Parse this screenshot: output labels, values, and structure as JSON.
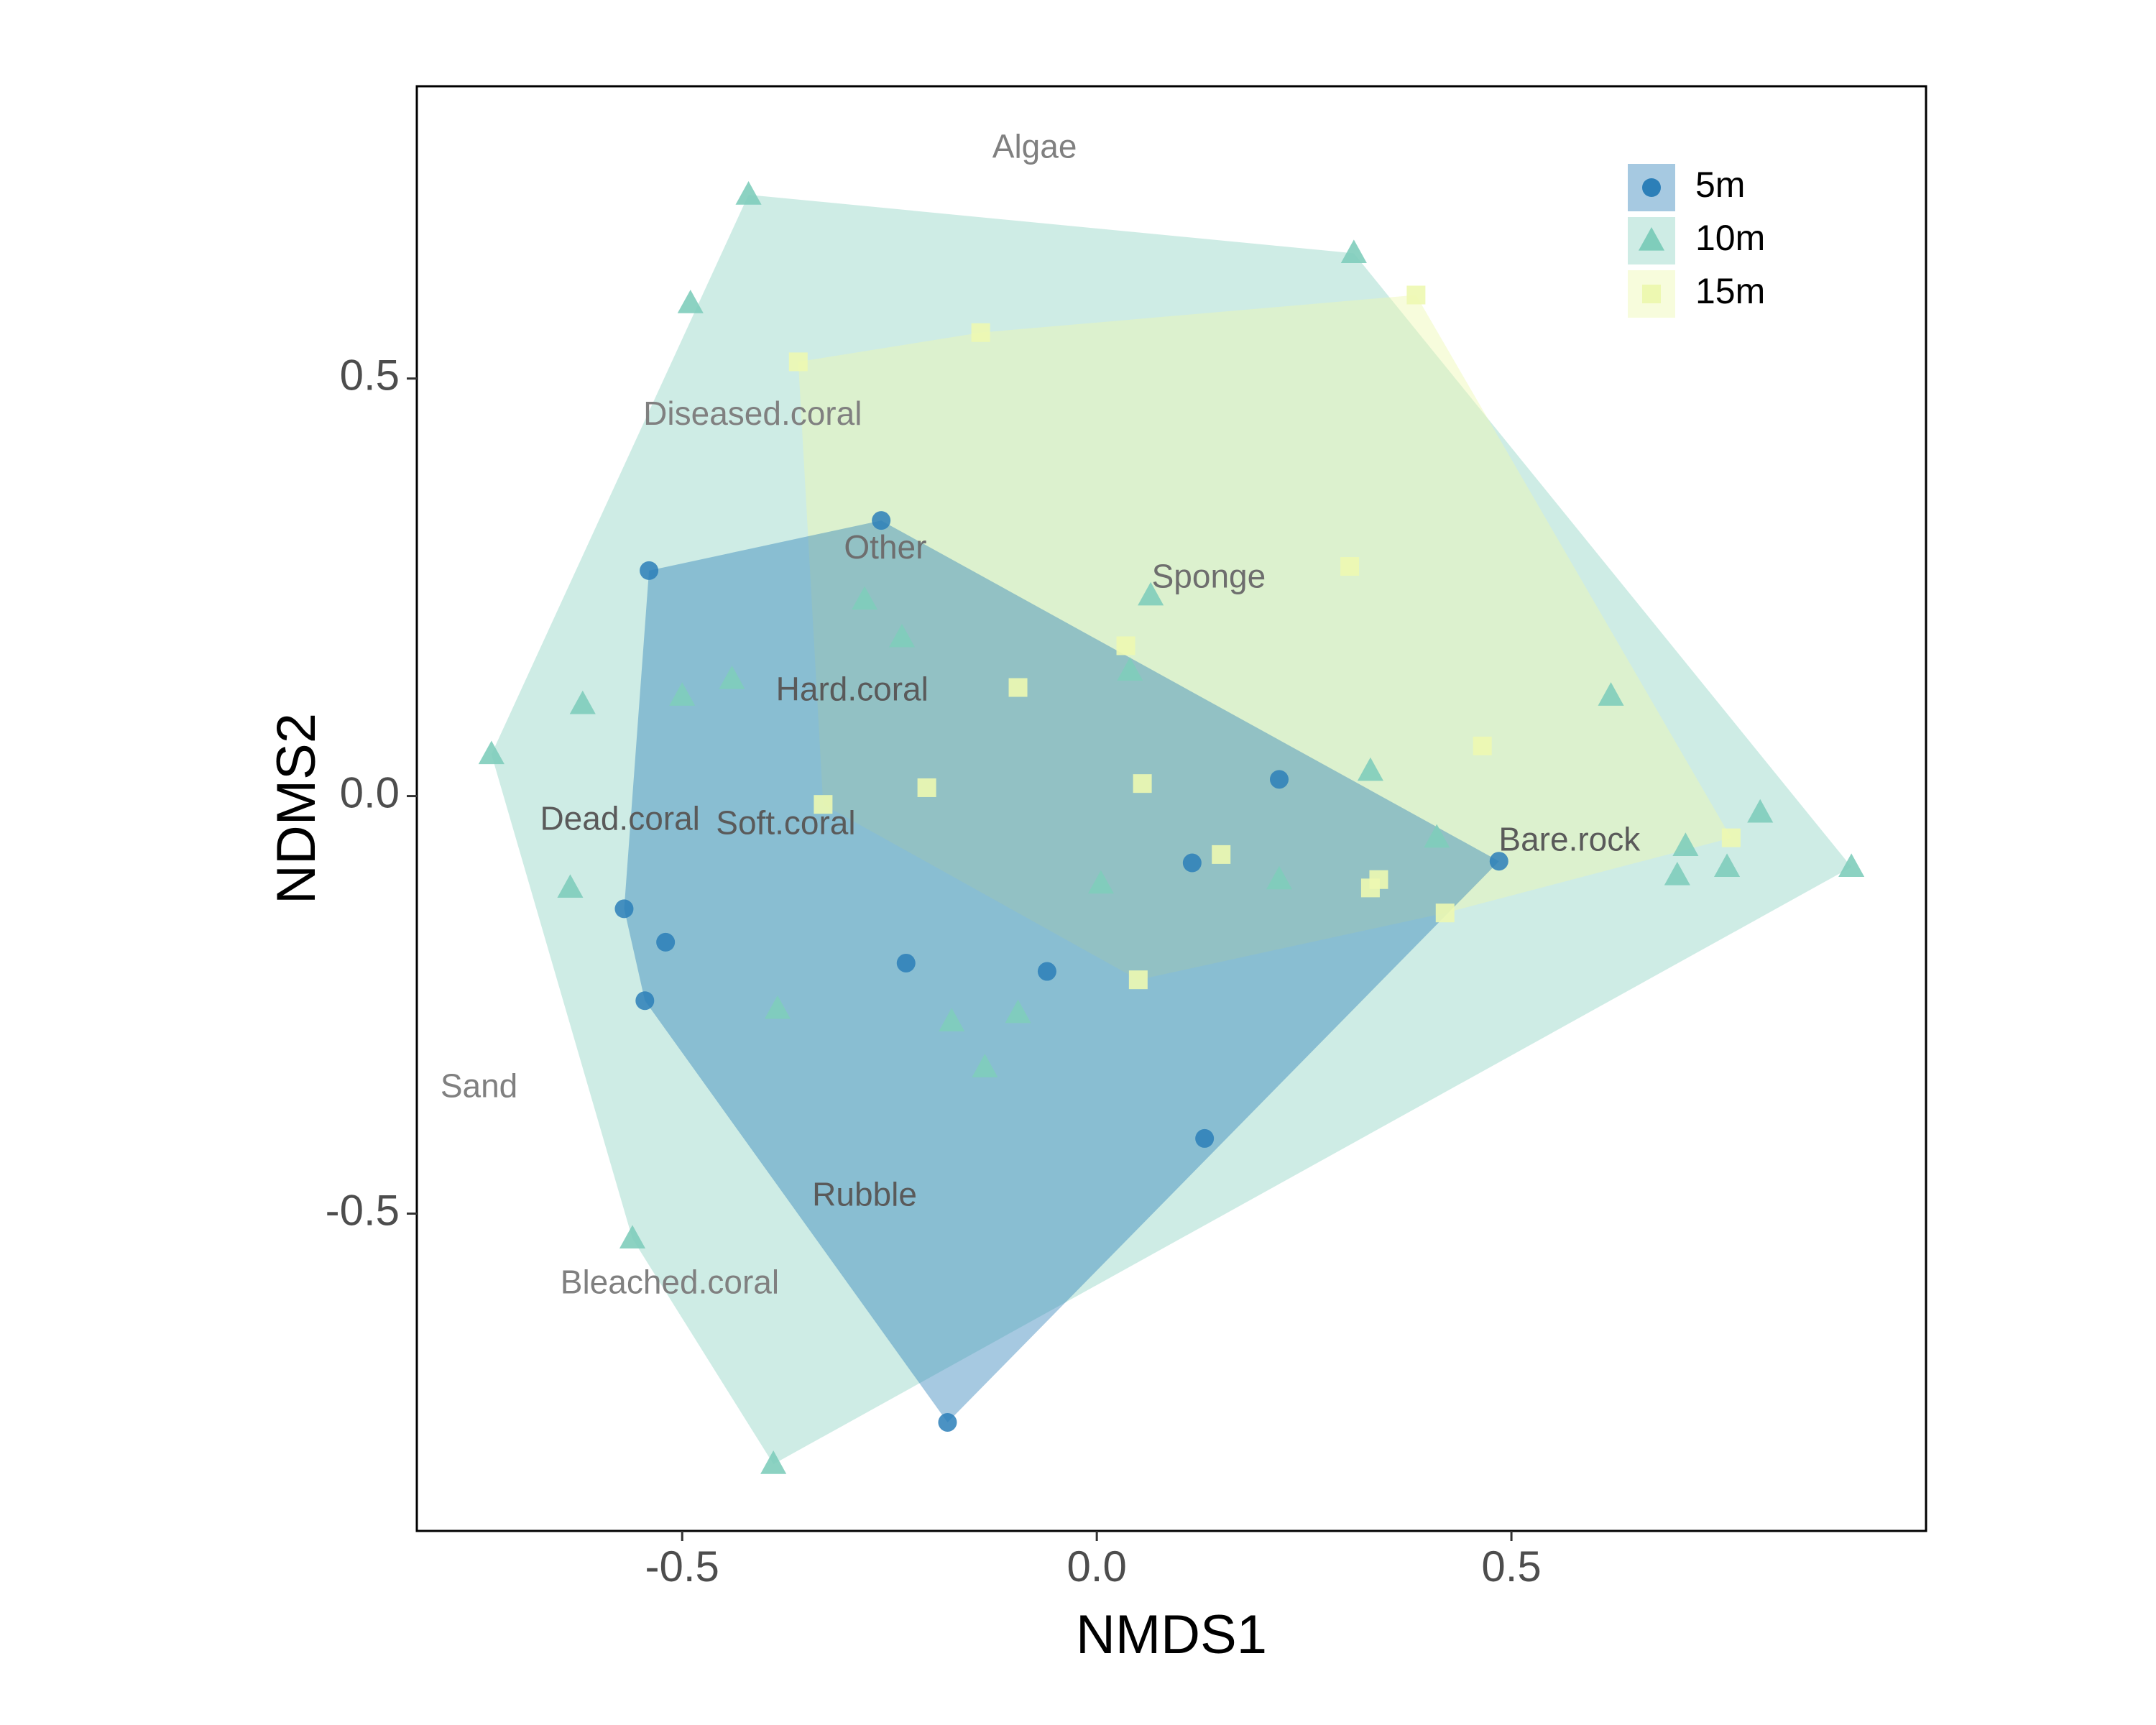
{
  "chart_data": {
    "type": "scatter",
    "title": "",
    "xlabel": "NMDS1",
    "ylabel": "NDMS2",
    "xlim": [
      -0.82,
      1.0
    ],
    "ylim": [
      -0.88,
      0.85
    ],
    "x_ticks": [
      -0.5,
      0.0,
      0.5
    ],
    "y_ticks": [
      -0.5,
      0.0,
      0.5
    ],
    "x_tick_labels": [
      "-0.5",
      "0.0",
      "0.5"
    ],
    "y_tick_labels": [
      "-0.5",
      "0.0",
      "0.5"
    ],
    "grid": false,
    "legend_position": "top-right",
    "colors": {
      "5m": "#2c7fb8",
      "10m": "#7fcdbb",
      "15m": "#edf8b1"
    },
    "series": [
      {
        "name": "5m",
        "marker": "circle",
        "points": [
          [
            -0.54,
            0.27
          ],
          [
            -0.26,
            0.33
          ],
          [
            -0.57,
            -0.135
          ],
          [
            -0.52,
            -0.175
          ],
          [
            -0.545,
            -0.245
          ],
          [
            -0.23,
            -0.2
          ],
          [
            -0.06,
            -0.21
          ],
          [
            0.22,
            0.02
          ],
          [
            0.115,
            -0.08
          ],
          [
            0.485,
            -0.078
          ],
          [
            0.13,
            -0.41
          ],
          [
            -0.18,
            -0.75
          ]
        ],
        "hull": [
          [
            -0.54,
            0.27
          ],
          [
            -0.26,
            0.33
          ],
          [
            0.485,
            -0.078
          ],
          [
            -0.18,
            -0.75
          ],
          [
            -0.545,
            -0.245
          ],
          [
            -0.57,
            -0.135
          ]
        ]
      },
      {
        "name": "10m",
        "marker": "triangle",
        "points": [
          [
            -0.42,
            0.72
          ],
          [
            0.31,
            0.65
          ],
          [
            -0.49,
            0.59
          ],
          [
            -0.62,
            0.11
          ],
          [
            -0.73,
            0.05
          ],
          [
            -0.5,
            0.12
          ],
          [
            -0.44,
            0.14
          ],
          [
            -0.28,
            0.235
          ],
          [
            -0.235,
            0.19
          ],
          [
            0.065,
            0.24
          ],
          [
            0.04,
            0.15
          ],
          [
            0.33,
            0.03
          ],
          [
            0.62,
            0.12
          ],
          [
            0.41,
            -0.05
          ],
          [
            0.22,
            -0.1
          ],
          [
            0.005,
            -0.105
          ],
          [
            0.71,
            -0.06
          ],
          [
            0.8,
            -0.02
          ],
          [
            0.76,
            -0.085
          ],
          [
            0.7,
            -0.095
          ],
          [
            0.91,
            -0.085
          ],
          [
            -0.635,
            -0.11
          ],
          [
            -0.385,
            -0.255
          ],
          [
            -0.175,
            -0.27
          ],
          [
            -0.095,
            -0.26
          ],
          [
            -0.135,
            -0.325
          ],
          [
            -0.56,
            -0.53
          ],
          [
            -0.39,
            -0.8
          ]
        ],
        "hull": [
          [
            -0.42,
            0.72
          ],
          [
            0.31,
            0.65
          ],
          [
            0.91,
            -0.085
          ],
          [
            -0.39,
            -0.8
          ],
          [
            -0.56,
            -0.53
          ],
          [
            -0.73,
            0.05
          ]
        ]
      },
      {
        "name": "15m",
        "marker": "square",
        "points": [
          [
            0.385,
            0.6
          ],
          [
            -0.14,
            0.555
          ],
          [
            -0.36,
            0.52
          ],
          [
            0.305,
            0.275
          ],
          [
            0.035,
            0.18
          ],
          [
            -0.095,
            0.13
          ],
          [
            0.465,
            0.06
          ],
          [
            -0.33,
            -0.01
          ],
          [
            -0.205,
            0.01
          ],
          [
            0.055,
            0.015
          ],
          [
            0.15,
            -0.07
          ],
          [
            0.34,
            -0.1
          ],
          [
            0.42,
            -0.14
          ],
          [
            0.05,
            -0.22
          ],
          [
            0.765,
            -0.05
          ],
          [
            0.33,
            -0.11
          ]
        ],
        "hull": [
          [
            -0.36,
            0.52
          ],
          [
            -0.14,
            0.555
          ],
          [
            0.385,
            0.6
          ],
          [
            0.765,
            -0.05
          ],
          [
            0.42,
            -0.14
          ],
          [
            0.05,
            -0.22
          ],
          [
            -0.33,
            -0.01
          ]
        ]
      }
    ],
    "species": [
      {
        "label": "Algae",
        "x": -0.075,
        "y": 0.775,
        "color": "#808080"
      },
      {
        "label": "Diseased.coral",
        "x": -0.415,
        "y": 0.455,
        "color": "#808080"
      },
      {
        "label": "Other",
        "x": -0.255,
        "y": 0.295,
        "color": "#6e6e6e"
      },
      {
        "label": "Sponge",
        "x": 0.135,
        "y": 0.26,
        "color": "#6e6e6e"
      },
      {
        "label": "Hard.coral",
        "x": -0.295,
        "y": 0.125,
        "color": "#5a5a5a"
      },
      {
        "label": "Dead.coral",
        "x": -0.575,
        "y": -0.03,
        "color": "#5a5a5a"
      },
      {
        "label": "Soft.coral",
        "x": -0.375,
        "y": -0.035,
        "color": "#5a5a5a"
      },
      {
        "label": "Bare.rock",
        "x": 0.57,
        "y": -0.055,
        "color": "#5a5a5a"
      },
      {
        "label": "Sand",
        "x": -0.745,
        "y": -0.35,
        "color": "#808080"
      },
      {
        "label": "Rubble",
        "x": -0.28,
        "y": -0.48,
        "color": "#5a5a5a"
      },
      {
        "label": "Bleached.coral",
        "x": -0.515,
        "y": -0.585,
        "color": "#808080"
      }
    ]
  }
}
